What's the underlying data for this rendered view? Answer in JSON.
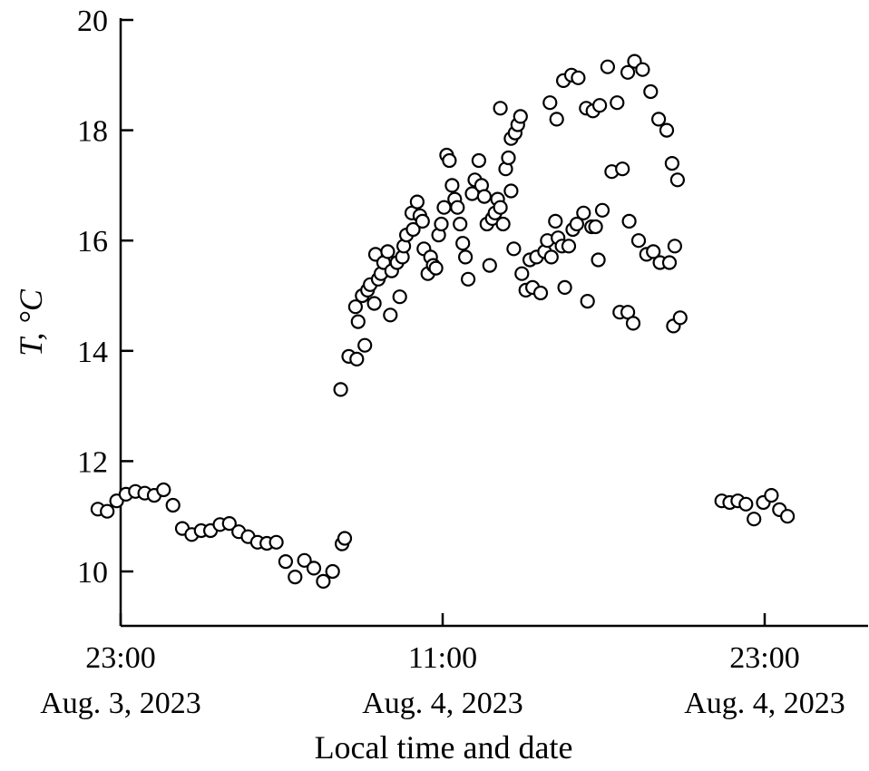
{
  "chart_data": {
    "type": "scatter",
    "ylabel": "T, °C",
    "xlabel": "Local time and date",
    "ylim": [
      9,
      20
    ],
    "xlim": [
      -1.4,
      28.9
    ],
    "x_unit": "hours since 23:00 Aug. 3, 2023",
    "yticks": [
      10,
      12,
      14,
      16,
      18,
      20
    ],
    "xticks": [
      {
        "x": 0,
        "time": "23:00",
        "date": "Aug. 3, 2023"
      },
      {
        "x": 12,
        "time": "11:00",
        "date": "Aug. 4, 2023"
      },
      {
        "x": 24,
        "time": "23:00",
        "date": "Aug. 4, 2023"
      }
    ],
    "grid": false,
    "marker": "open-circle",
    "points": [
      [
        -0.85,
        11.13
      ],
      [
        -0.5,
        11.09
      ],
      [
        -0.15,
        11.28
      ],
      [
        0.2,
        11.4
      ],
      [
        0.55,
        11.45
      ],
      [
        0.9,
        11.42
      ],
      [
        1.25,
        11.38
      ],
      [
        1.6,
        11.48
      ],
      [
        1.95,
        11.2
      ],
      [
        2.3,
        10.78
      ],
      [
        2.65,
        10.67
      ],
      [
        3.0,
        10.74
      ],
      [
        3.35,
        10.74
      ],
      [
        3.7,
        10.85
      ],
      [
        4.05,
        10.87
      ],
      [
        4.4,
        10.72
      ],
      [
        4.75,
        10.63
      ],
      [
        5.1,
        10.53
      ],
      [
        5.45,
        10.51
      ],
      [
        5.8,
        10.53
      ],
      [
        6.15,
        10.18
      ],
      [
        6.5,
        9.9
      ],
      [
        6.85,
        10.2
      ],
      [
        7.2,
        10.06
      ],
      [
        7.55,
        9.82
      ],
      [
        7.9,
        10.0
      ],
      [
        8.25,
        10.5
      ],
      [
        8.35,
        10.6
      ],
      [
        8.2,
        13.3
      ],
      [
        8.5,
        13.9
      ],
      [
        8.8,
        13.85
      ],
      [
        9.1,
        14.1
      ],
      [
        8.75,
        14.8
      ],
      [
        8.85,
        14.53
      ],
      [
        9.0,
        15.0
      ],
      [
        9.2,
        15.1
      ],
      [
        9.3,
        15.2
      ],
      [
        9.5,
        15.75
      ],
      [
        9.6,
        15.3
      ],
      [
        9.7,
        15.4
      ],
      [
        9.8,
        15.6
      ],
      [
        9.95,
        15.8
      ],
      [
        10.1,
        15.45
      ],
      [
        10.3,
        15.6
      ],
      [
        10.5,
        15.7
      ],
      [
        9.45,
        14.86
      ],
      [
        10.05,
        14.65
      ],
      [
        10.4,
        14.98
      ],
      [
        10.55,
        15.9
      ],
      [
        10.65,
        16.1
      ],
      [
        10.85,
        16.5
      ],
      [
        10.9,
        16.2
      ],
      [
        11.05,
        16.7
      ],
      [
        11.15,
        16.45
      ],
      [
        11.25,
        16.35
      ],
      [
        11.3,
        15.85
      ],
      [
        11.45,
        15.4
      ],
      [
        11.55,
        15.7
      ],
      [
        11.65,
        15.55
      ],
      [
        11.75,
        15.5
      ],
      [
        11.85,
        16.1
      ],
      [
        11.95,
        16.3
      ],
      [
        12.05,
        16.6
      ],
      [
        12.15,
        17.55
      ],
      [
        12.25,
        17.45
      ],
      [
        12.35,
        17.0
      ],
      [
        12.45,
        16.75
      ],
      [
        12.55,
        16.6
      ],
      [
        12.65,
        16.3
      ],
      [
        12.75,
        15.95
      ],
      [
        12.85,
        15.7
      ],
      [
        12.95,
        15.3
      ],
      [
        13.1,
        16.85
      ],
      [
        13.2,
        17.1
      ],
      [
        13.35,
        17.45
      ],
      [
        13.45,
        17.0
      ],
      [
        13.55,
        16.8
      ],
      [
        13.65,
        16.3
      ],
      [
        13.75,
        15.55
      ],
      [
        13.85,
        16.4
      ],
      [
        13.95,
        16.5
      ],
      [
        14.05,
        16.75
      ],
      [
        14.15,
        16.6
      ],
      [
        14.25,
        16.3
      ],
      [
        14.35,
        17.3
      ],
      [
        14.45,
        17.5
      ],
      [
        14.55,
        17.85
      ],
      [
        14.7,
        17.95
      ],
      [
        14.8,
        18.1
      ],
      [
        14.9,
        18.25
      ],
      [
        14.15,
        18.4
      ],
      [
        14.55,
        16.9
      ],
      [
        14.65,
        15.85
      ],
      [
        14.95,
        15.4
      ],
      [
        15.1,
        15.1
      ],
      [
        15.25,
        15.65
      ],
      [
        15.35,
        15.15
      ],
      [
        15.5,
        15.7
      ],
      [
        15.65,
        15.05
      ],
      [
        15.8,
        15.8
      ],
      [
        15.9,
        16.0
      ],
      [
        16.05,
        15.7
      ],
      [
        16.2,
        16.35
      ],
      [
        16.3,
        16.05
      ],
      [
        16.45,
        15.9
      ],
      [
        16.55,
        15.15
      ],
      [
        16.7,
        15.9
      ],
      [
        16.85,
        16.2
      ],
      [
        17.0,
        16.3
      ],
      [
        17.25,
        16.5
      ],
      [
        17.4,
        14.9
      ],
      [
        17.55,
        16.25
      ],
      [
        17.7,
        16.25
      ],
      [
        17.8,
        15.65
      ],
      [
        17.95,
        16.55
      ],
      [
        16.0,
        18.5
      ],
      [
        16.25,
        18.2
      ],
      [
        16.5,
        18.9
      ],
      [
        16.8,
        19.0
      ],
      [
        17.05,
        18.95
      ],
      [
        17.35,
        18.4
      ],
      [
        17.6,
        18.35
      ],
      [
        17.85,
        18.45
      ],
      [
        18.15,
        19.15
      ],
      [
        18.3,
        17.25
      ],
      [
        18.5,
        18.5
      ],
      [
        18.7,
        17.3
      ],
      [
        18.9,
        19.05
      ],
      [
        19.15,
        19.25
      ],
      [
        19.45,
        19.1
      ],
      [
        19.75,
        18.7
      ],
      [
        20.05,
        18.2
      ],
      [
        20.35,
        18.0
      ],
      [
        20.55,
        17.4
      ],
      [
        20.75,
        17.1
      ],
      [
        18.95,
        16.35
      ],
      [
        19.3,
        16.0
      ],
      [
        19.6,
        15.75
      ],
      [
        19.85,
        15.8
      ],
      [
        20.1,
        15.6
      ],
      [
        20.45,
        15.6
      ],
      [
        20.65,
        15.9
      ],
      [
        18.6,
        14.7
      ],
      [
        18.9,
        14.7
      ],
      [
        19.1,
        14.5
      ],
      [
        20.6,
        14.45
      ],
      [
        20.85,
        14.6
      ],
      [
        22.4,
        11.28
      ],
      [
        22.7,
        11.25
      ],
      [
        23.0,
        11.28
      ],
      [
        23.3,
        11.22
      ],
      [
        23.6,
        10.95
      ],
      [
        23.95,
        11.25
      ],
      [
        24.25,
        11.38
      ],
      [
        24.55,
        11.12
      ],
      [
        24.85,
        11.0
      ]
    ]
  }
}
